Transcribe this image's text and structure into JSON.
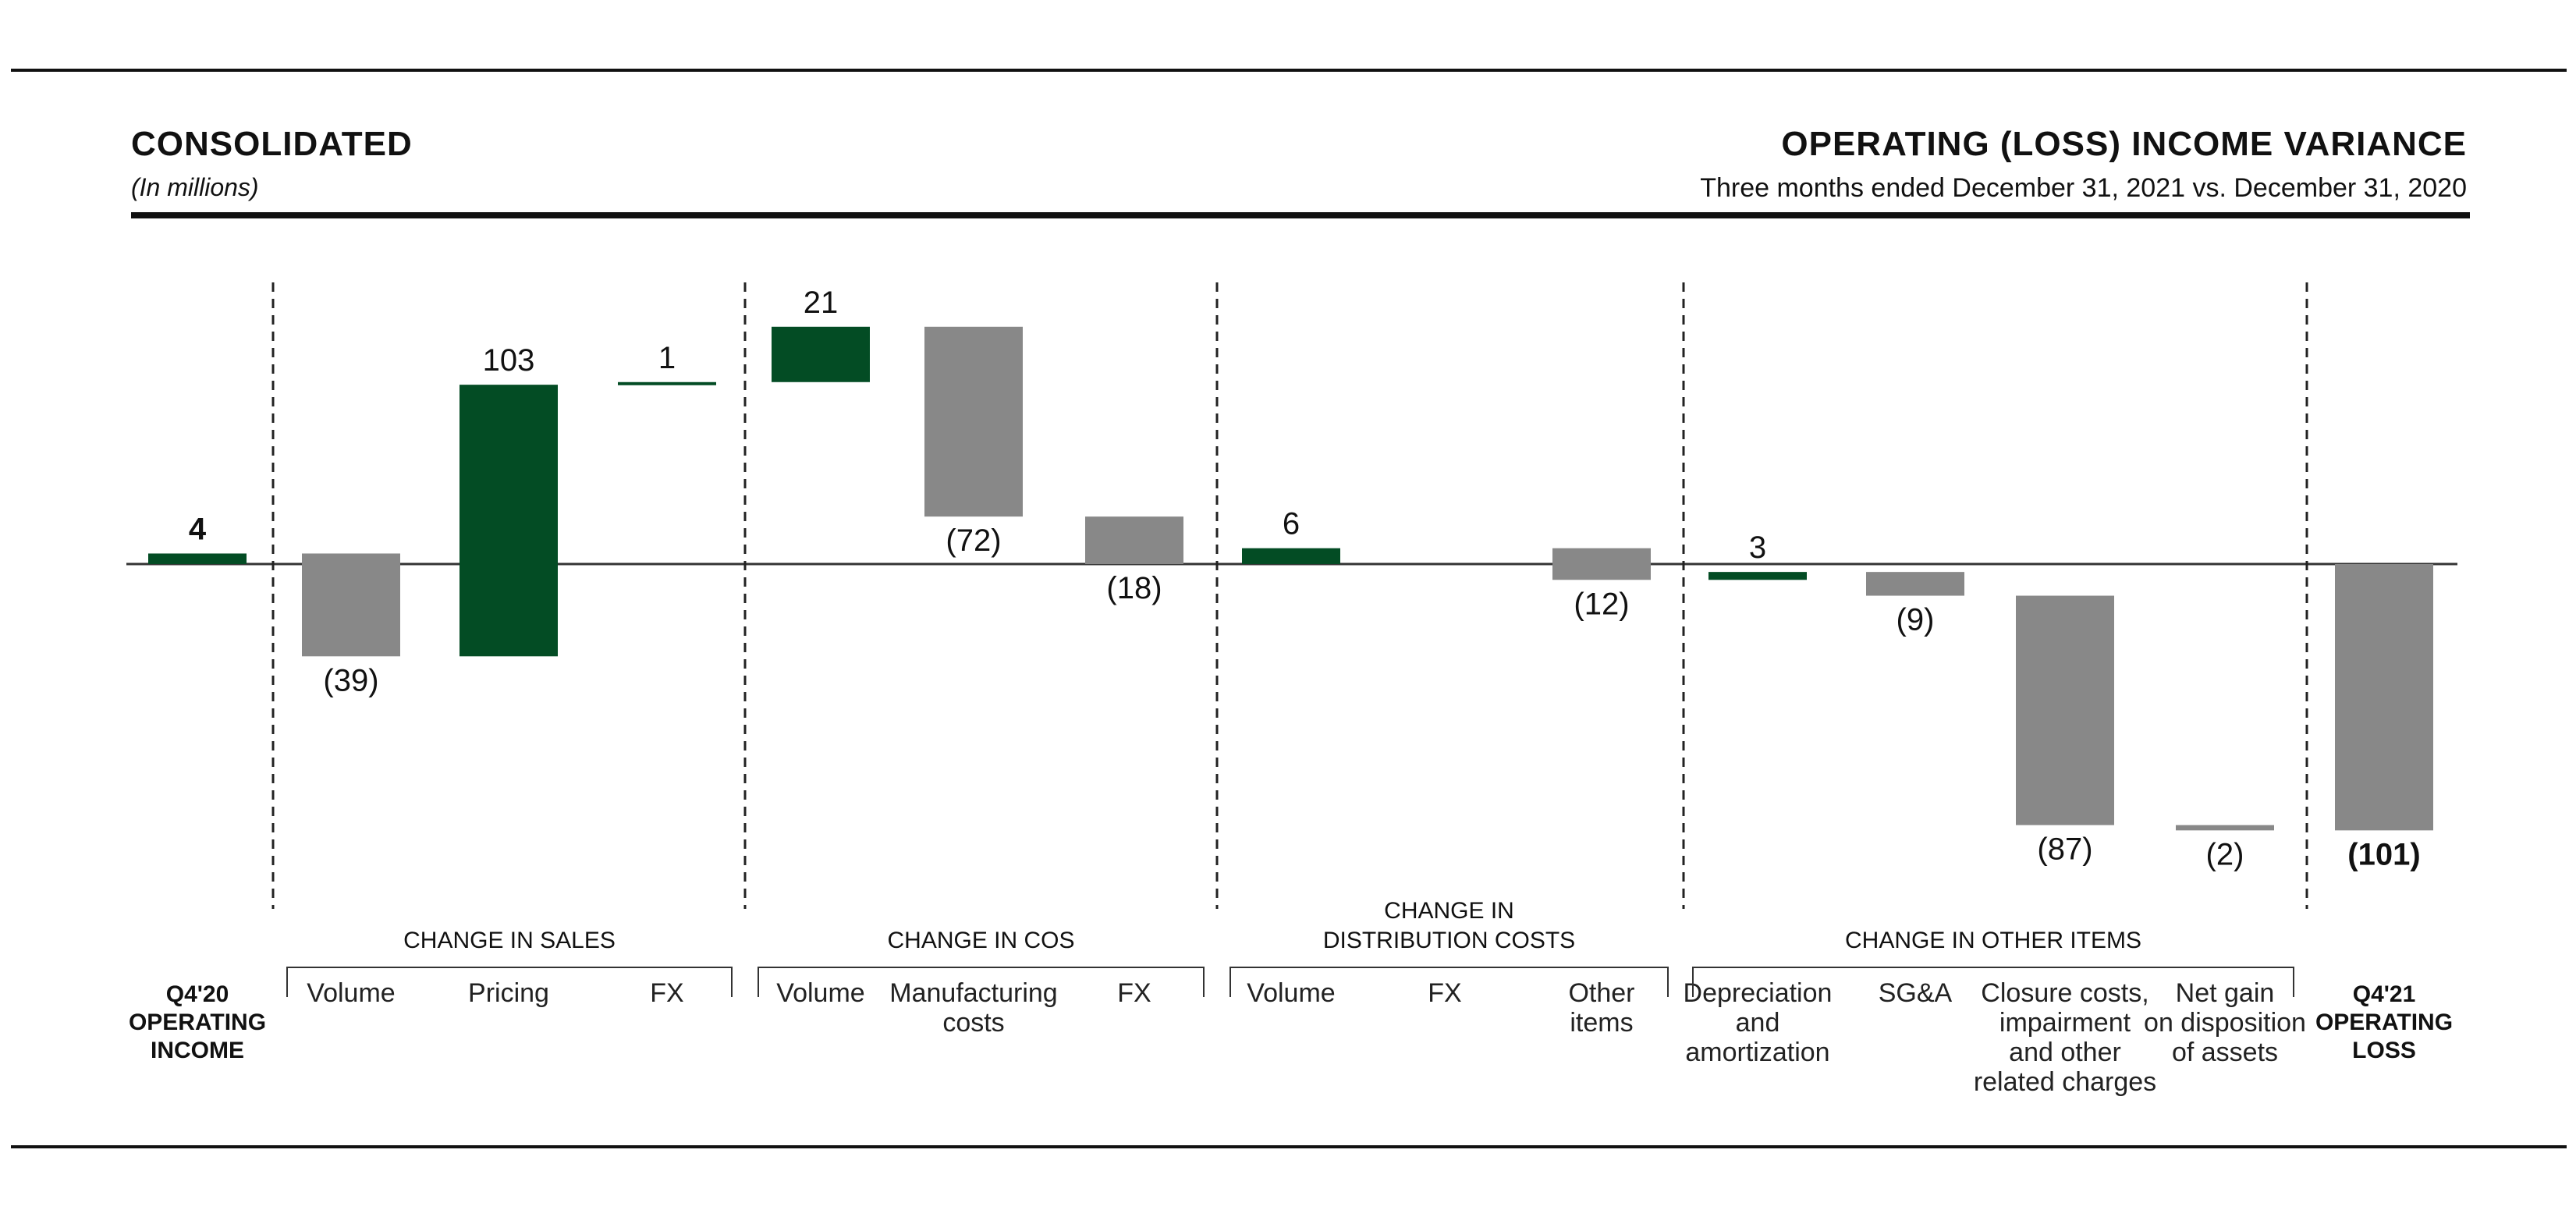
{
  "header": {
    "title_left": "CONSOLIDATED",
    "subtitle_left": "(In millions)",
    "title_right": "OPERATING (LOSS) INCOME VARIANCE",
    "subtitle_right": "Three months ended December 31, 2021 vs. December 31, 2020"
  },
  "colors": {
    "increase": "#034c24",
    "decrease": "#888888",
    "axis": "#333333"
  },
  "chart_data": {
    "type": "bar",
    "subtype": "waterfall",
    "title": "OPERATING (LOSS) INCOME VARIANCE",
    "unit": "In millions",
    "start": {
      "label": [
        "Q4'20",
        "OPERATING",
        "INCOME"
      ],
      "value": 4,
      "value_label": "4"
    },
    "end": {
      "label": [
        "Q4'21",
        "OPERATING",
        "LOSS"
      ],
      "value": -101,
      "value_label": "(101)"
    },
    "groups": [
      {
        "name": [
          "CHANGE IN SALES"
        ],
        "steps": [
          {
            "label": [
              "Volume"
            ],
            "value": -39,
            "value_label": "(39)"
          },
          {
            "label": [
              "Pricing"
            ],
            "value": 103,
            "value_label": "103"
          },
          {
            "label": [
              "FX"
            ],
            "value": 1,
            "value_label": "1"
          }
        ]
      },
      {
        "name": [
          "CHANGE IN COS"
        ],
        "steps": [
          {
            "label": [
              "Volume"
            ],
            "value": 21,
            "value_label": "21"
          },
          {
            "label": [
              "Manufacturing",
              "costs"
            ],
            "value": -72,
            "value_label": "(72)"
          },
          {
            "label": [
              "FX"
            ],
            "value": -18,
            "value_label": "(18)"
          }
        ]
      },
      {
        "name": [
          "CHANGE IN",
          "DISTRIBUTION COSTS"
        ],
        "steps": [
          {
            "label": [
              "Volume"
            ],
            "value": 6,
            "value_label": "6"
          },
          {
            "label": [
              "FX"
            ],
            "value": 0,
            "value_label": ""
          },
          {
            "label": [
              "Other",
              "items"
            ],
            "value": -12,
            "value_label": "(12)"
          }
        ]
      },
      {
        "name": [
          "CHANGE IN OTHER ITEMS"
        ],
        "steps": [
          {
            "label": [
              "Depreciation",
              "and",
              "amortization"
            ],
            "value": 3,
            "value_label": "3"
          },
          {
            "label": [
              "SG&A"
            ],
            "value": -9,
            "value_label": "(9)"
          },
          {
            "label": [
              "Closure costs,",
              "impairment",
              "and other",
              "related charges"
            ],
            "value": -87,
            "value_label": "(87)"
          },
          {
            "label": [
              "Net gain",
              "on disposition",
              "of assets"
            ],
            "value": -2,
            "value_label": "(2)"
          }
        ]
      }
    ]
  }
}
